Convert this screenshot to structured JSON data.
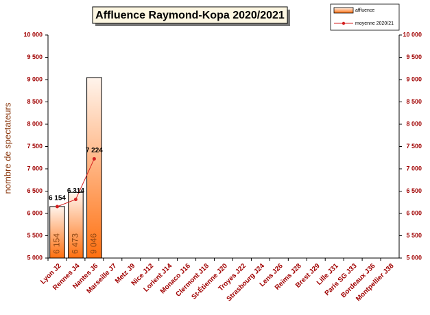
{
  "chart_data": {
    "type": "bar",
    "title": "Affluence Raymond-Kopa 2020/2021",
    "ylabel": "nombre de spectateurs",
    "categories": [
      "Lyon J2",
      "Rennes J4",
      "Nantes J6",
      "Marseille J7",
      "Metz J9",
      "Nice J12",
      "Lorient J14",
      "Monaco J16",
      "Clermont J18",
      "St-Étienne J20",
      "Troyes J22",
      "Strasbourg J24",
      "Lens J26",
      "Reims J28",
      "Brest J29",
      "Lille J31",
      "Paris SG J33",
      "Bordeaux J36",
      "Montpellier J38"
    ],
    "series": [
      {
        "name": "affluence",
        "type": "bar",
        "color": "#ff7f27",
        "values": [
          6154,
          6473,
          9046,
          null,
          null,
          null,
          null,
          null,
          null,
          null,
          null,
          null,
          null,
          null,
          null,
          null,
          null,
          null,
          null
        ],
        "value_labels": [
          "6 154",
          "6 473",
          "9 046",
          null,
          null,
          null,
          null,
          null,
          null,
          null,
          null,
          null,
          null,
          null,
          null,
          null,
          null,
          null,
          null
        ]
      },
      {
        "name": "moyenne 2020/21",
        "type": "line",
        "color": "#d42020",
        "values": [
          6154,
          6314,
          7224,
          null,
          null,
          null,
          null,
          null,
          null,
          null,
          null,
          null,
          null,
          null,
          null,
          null,
          null,
          null,
          null
        ],
        "value_labels": [
          "6 154",
          "6 314",
          "7 224",
          null,
          null,
          null,
          null,
          null,
          null,
          null,
          null,
          null,
          null,
          null,
          null,
          null,
          null,
          null,
          null
        ]
      }
    ],
    "ylim": [
      5000,
      10000
    ],
    "yticks": [
      {
        "value": 5000,
        "label": "5 000"
      },
      {
        "value": 5500,
        "label": "5 500"
      },
      {
        "value": 6000,
        "label": "6 000"
      },
      {
        "value": 6500,
        "label": "6 500"
      },
      {
        "value": 7000,
        "label": "7 000"
      },
      {
        "value": 7500,
        "label": "7 500"
      },
      {
        "value": 8000,
        "label": "8 000"
      },
      {
        "value": 8500,
        "label": "8 500"
      },
      {
        "value": 9000,
        "label": "9 000"
      },
      {
        "value": 9500,
        "label": "9 500"
      },
      {
        "value": 10000,
        "label": "10 000"
      }
    ],
    "y2lim": [
      5000,
      10000
    ],
    "y2ticks": [
      {
        "value": 5000,
        "label": "5 000"
      },
      {
        "value": 5500,
        "label": "5 500"
      },
      {
        "value": 6000,
        "label": "6 000"
      },
      {
        "value": 6500,
        "label": "6 500"
      },
      {
        "value": 7000,
        "label": "7 000"
      },
      {
        "value": 7500,
        "label": "7 500"
      },
      {
        "value": 8000,
        "label": "8 000"
      },
      {
        "value": 8500,
        "label": "8 500"
      },
      {
        "value": 9000,
        "label": "9 000"
      },
      {
        "value": 9500,
        "label": "9 500"
      },
      {
        "value": 10000,
        "label": "10 000"
      }
    ],
    "grid": false,
    "legend": "top-right"
  }
}
